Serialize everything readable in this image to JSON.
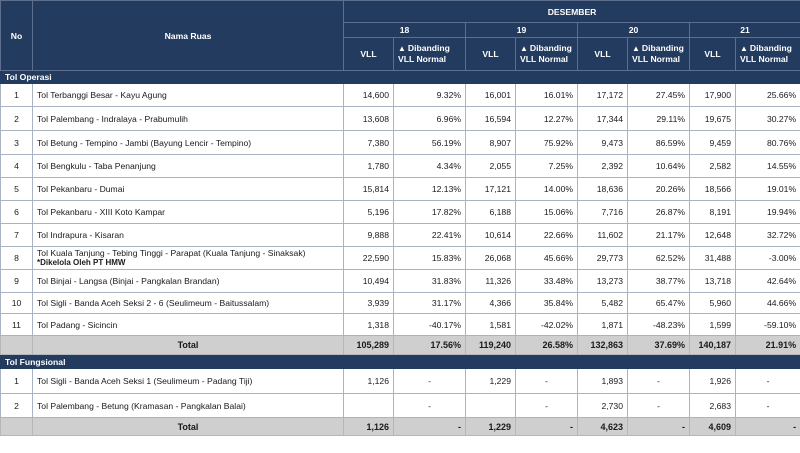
{
  "header": {
    "no": "No",
    "nama_ruas": "Nama Ruas",
    "month": "DESEMBER",
    "days": [
      "18",
      "19",
      "20",
      "21"
    ],
    "vll": "VLL",
    "arrow_glyph": "▲",
    "dibanding_1": "Dibanding",
    "dibanding_2": "VLL Normal"
  },
  "sections": {
    "operasi": {
      "title": "Tol Operasi"
    },
    "fungsional": {
      "title": "Tol Fungsional"
    }
  },
  "operasi_rows": [
    {
      "no": "1",
      "name": "Tol Terbanggi Besar - Kayu Agung",
      "note": "",
      "v18": "14,600",
      "p18": "9.32%",
      "v19": "16,001",
      "p19": "16.01%",
      "v20": "17,172",
      "p20": "27.45%",
      "v21": "17,900",
      "p21": "25.66%"
    },
    {
      "no": "2",
      "name": "Tol Palembang - Indralaya - Prabumulih",
      "note": "",
      "v18": "13,608",
      "p18": "6.96%",
      "v19": "16,594",
      "p19": "12.27%",
      "v20": "17,344",
      "p20": "29.11%",
      "v21": "19,675",
      "p21": "30.27%"
    },
    {
      "no": "3",
      "name": "Tol Betung - Tempino - Jambi (Bayung Lencir - Tempino)",
      "note": "",
      "v18": "7,380",
      "p18": "56.19%",
      "v19": "8,907",
      "p19": "75.92%",
      "v20": "9,473",
      "p20": "86.59%",
      "v21": "9,459",
      "p21": "80.76%"
    },
    {
      "no": "4",
      "name": "Tol Bengkulu - Taba Penanjung",
      "note": "",
      "v18": "1,780",
      "p18": "4.34%",
      "v19": "2,055",
      "p19": "7.25%",
      "v20": "2,392",
      "p20": "10.64%",
      "v21": "2,582",
      "p21": "14.55%"
    },
    {
      "no": "5",
      "name": "Tol Pekanbaru - Dumai",
      "note": "",
      "v18": "15,814",
      "p18": "12.13%",
      "v19": "17,121",
      "p19": "14.00%",
      "v20": "18,636",
      "p20": "20.26%",
      "v21": "18,566",
      "p21": "19.01%"
    },
    {
      "no": "6",
      "name": "Tol Pekanbaru  - XIII Koto Kampar",
      "note": "",
      "v18": "5,196",
      "p18": "17.82%",
      "v19": "6,188",
      "p19": "15.06%",
      "v20": "7,716",
      "p20": "26.87%",
      "v21": "8,191",
      "p21": "19.94%"
    },
    {
      "no": "7",
      "name": "Tol Indrapura - Kisaran",
      "note": "",
      "v18": "9,888",
      "p18": "22.41%",
      "v19": "10,614",
      "p19": "22.66%",
      "v20": "11,602",
      "p20": "21.17%",
      "v21": "12,648",
      "p21": "32.72%"
    },
    {
      "no": "8",
      "name": "Tol Kuala Tanjung - Tebing Tinggi - Parapat (Kuala Tanjung - Sinaksak)",
      "note": "*Dikelola Oleh PT HMW",
      "v18": "22,590",
      "p18": "15.83%",
      "v19": "26,068",
      "p19": "45.66%",
      "v20": "29,773",
      "p20": "62.52%",
      "v21": "31,488",
      "p21": "-3.00%"
    },
    {
      "no": "9",
      "name": "Tol Binjai - Langsa (Binjai - Pangkalan Brandan)",
      "note": "",
      "v18": "10,494",
      "p18": "31.83%",
      "v19": "11,326",
      "p19": "33.48%",
      "v20": "13,273",
      "p20": "38.77%",
      "v21": "13,718",
      "p21": "42.64%"
    },
    {
      "no": "10",
      "name": "Tol Sigli - Banda Aceh Seksi 2 - 6 (Seulimeum - Baitussalam)",
      "note": "",
      "v18": "3,939",
      "p18": "31.17%",
      "v19": "4,366",
      "p19": "35.84%",
      "v20": "5,482",
      "p20": "65.47%",
      "v21": "5,960",
      "p21": "44.66%"
    },
    {
      "no": "11",
      "name": "Tol Padang - Sicincin",
      "note": "",
      "v18": "1,318",
      "p18": "-40.17%",
      "v19": "1,581",
      "p19": "-42.02%",
      "v20": "1,871",
      "p20": "-48.23%",
      "v21": "1,599",
      "p21": "-59.10%"
    }
  ],
  "operasi_total": {
    "label": "Total",
    "v18": "105,289",
    "p18": "17.56%",
    "v19": "119,240",
    "p19": "26.58%",
    "v20": "132,863",
    "p20": "37.69%",
    "v21": "140,187",
    "p21": "21.91%"
  },
  "fungsional_rows": [
    {
      "no": "1",
      "name": "Tol Sigli - Banda Aceh Seksi 1 (Seulimeum - Padang Tiji)",
      "v18": "1,126",
      "p18": "-",
      "v19": "1,229",
      "p19": "-",
      "v20": "1,893",
      "p20": "-",
      "v21": "1,926",
      "p21": "-"
    },
    {
      "no": "2",
      "name": "Tol Palembang - Betung (Kramasan - Pangkalan Balai)",
      "v18": "",
      "p18": "-",
      "v19": "",
      "p19": "-",
      "v20": "2,730",
      "p20": "-",
      "v21": "2,683",
      "p21": "-"
    }
  ],
  "fungsional_total": {
    "label": "Total",
    "v18": "1,126",
    "p18": "-",
    "v19": "1,229",
    "p19": "-",
    "v20": "4,623",
    "p20": "-",
    "v21": "4,609",
    "p21": "-"
  }
}
